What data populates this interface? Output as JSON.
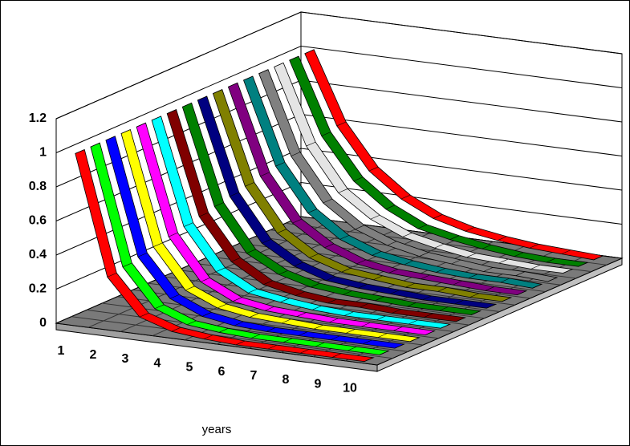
{
  "chart_data": {
    "type": "ribbon3d",
    "x_label": "years",
    "categories": [
      "1",
      "2",
      "3",
      "4",
      "5",
      "6",
      "7",
      "8",
      "9",
      "10"
    ],
    "ylim": [
      0,
      1.2
    ],
    "yticks": [
      0,
      0.2,
      0.4,
      0.6,
      0.8,
      1,
      1.2
    ],
    "grid": true,
    "series": [
      {
        "color": "#ff0000",
        "values": [
          1,
          0.3,
          0.09,
          0.03,
          0.01,
          0,
          0,
          0,
          0,
          0
        ]
      },
      {
        "color": "#00ff00",
        "values": [
          1,
          0.32,
          0.1,
          0.03,
          0.01,
          0,
          0,
          0,
          0,
          0
        ]
      },
      {
        "color": "#0000ff",
        "values": [
          1,
          0.34,
          0.12,
          0.04,
          0.01,
          0,
          0,
          0,
          0,
          0
        ]
      },
      {
        "color": "#ffff00",
        "values": [
          1,
          0.36,
          0.13,
          0.05,
          0.02,
          0.01,
          0,
          0,
          0,
          0
        ]
      },
      {
        "color": "#ff00ff",
        "values": [
          1,
          0.38,
          0.14,
          0.05,
          0.02,
          0.01,
          0,
          0,
          0,
          0
        ]
      },
      {
        "color": "#00ffff",
        "values": [
          1,
          0.4,
          0.16,
          0.06,
          0.03,
          0.01,
          0,
          0,
          0,
          0
        ]
      },
      {
        "color": "#800000",
        "values": [
          1,
          0.42,
          0.18,
          0.07,
          0.03,
          0.01,
          0.01,
          0,
          0,
          0
        ]
      },
      {
        "color": "#008000",
        "values": [
          1,
          0.44,
          0.19,
          0.09,
          0.04,
          0.02,
          0.01,
          0,
          0,
          0
        ]
      },
      {
        "color": "#000080",
        "values": [
          1,
          0.46,
          0.21,
          0.1,
          0.04,
          0.02,
          0.01,
          0,
          0,
          0
        ]
      },
      {
        "color": "#808000",
        "values": [
          1,
          0.48,
          0.23,
          0.11,
          0.05,
          0.03,
          0.01,
          0.01,
          0,
          0
        ]
      },
      {
        "color": "#800080",
        "values": [
          1,
          0.5,
          0.25,
          0.13,
          0.06,
          0.03,
          0.02,
          0.01,
          0,
          0
        ]
      },
      {
        "color": "#008080",
        "values": [
          1,
          0.52,
          0.27,
          0.14,
          0.07,
          0.04,
          0.02,
          0.01,
          0.01,
          0
        ]
      },
      {
        "color": "#808080",
        "values": [
          1,
          0.54,
          0.29,
          0.16,
          0.09,
          0.05,
          0.03,
          0.01,
          0.01,
          0
        ]
      },
      {
        "color": "#e4e4e4",
        "values": [
          1,
          0.56,
          0.31,
          0.18,
          0.1,
          0.06,
          0.03,
          0.02,
          0.01,
          0.01
        ]
      },
      {
        "color": "#008000",
        "values": [
          1,
          0.58,
          0.34,
          0.2,
          0.11,
          0.07,
          0.04,
          0.02,
          0.01,
          0.01
        ]
      },
      {
        "color": "#ff0000",
        "values": [
          1,
          0.6,
          0.36,
          0.22,
          0.13,
          0.08,
          0.05,
          0.03,
          0.02,
          0.01
        ]
      }
    ]
  }
}
